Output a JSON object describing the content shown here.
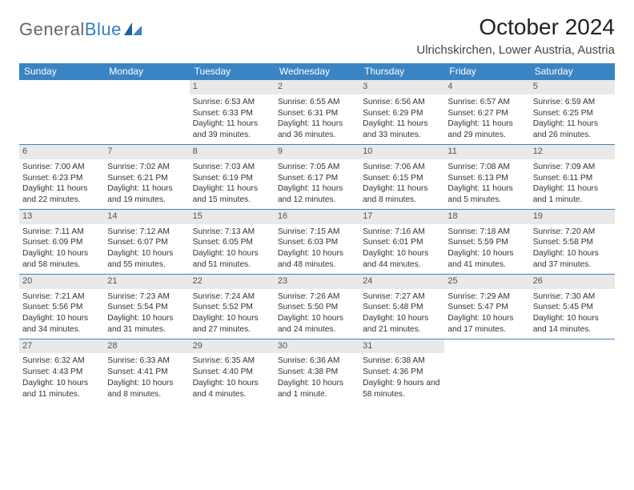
{
  "brand": {
    "name_gray": "General",
    "name_blue": "Blue"
  },
  "title": "October 2024",
  "location": "Ulrichskirchen, Lower Austria, Austria",
  "colors": {
    "header_bg": "#3b84c4",
    "daynum_bg": "#e9e9e9",
    "divider": "#3b84c4",
    "text": "#333333",
    "page_bg": "#ffffff"
  },
  "weekdays": [
    "Sunday",
    "Monday",
    "Tuesday",
    "Wednesday",
    "Thursday",
    "Friday",
    "Saturday"
  ],
  "weeks": [
    [
      {
        "n": "",
        "sunrise": "",
        "sunset": "",
        "daylight": ""
      },
      {
        "n": "",
        "sunrise": "",
        "sunset": "",
        "daylight": ""
      },
      {
        "n": "1",
        "sunrise": "Sunrise: 6:53 AM",
        "sunset": "Sunset: 6:33 PM",
        "daylight": "Daylight: 11 hours and 39 minutes."
      },
      {
        "n": "2",
        "sunrise": "Sunrise: 6:55 AM",
        "sunset": "Sunset: 6:31 PM",
        "daylight": "Daylight: 11 hours and 36 minutes."
      },
      {
        "n": "3",
        "sunrise": "Sunrise: 6:56 AM",
        "sunset": "Sunset: 6:29 PM",
        "daylight": "Daylight: 11 hours and 33 minutes."
      },
      {
        "n": "4",
        "sunrise": "Sunrise: 6:57 AM",
        "sunset": "Sunset: 6:27 PM",
        "daylight": "Daylight: 11 hours and 29 minutes."
      },
      {
        "n": "5",
        "sunrise": "Sunrise: 6:59 AM",
        "sunset": "Sunset: 6:25 PM",
        "daylight": "Daylight: 11 hours and 26 minutes."
      }
    ],
    [
      {
        "n": "6",
        "sunrise": "Sunrise: 7:00 AM",
        "sunset": "Sunset: 6:23 PM",
        "daylight": "Daylight: 11 hours and 22 minutes."
      },
      {
        "n": "7",
        "sunrise": "Sunrise: 7:02 AM",
        "sunset": "Sunset: 6:21 PM",
        "daylight": "Daylight: 11 hours and 19 minutes."
      },
      {
        "n": "8",
        "sunrise": "Sunrise: 7:03 AM",
        "sunset": "Sunset: 6:19 PM",
        "daylight": "Daylight: 11 hours and 15 minutes."
      },
      {
        "n": "9",
        "sunrise": "Sunrise: 7:05 AM",
        "sunset": "Sunset: 6:17 PM",
        "daylight": "Daylight: 11 hours and 12 minutes."
      },
      {
        "n": "10",
        "sunrise": "Sunrise: 7:06 AM",
        "sunset": "Sunset: 6:15 PM",
        "daylight": "Daylight: 11 hours and 8 minutes."
      },
      {
        "n": "11",
        "sunrise": "Sunrise: 7:08 AM",
        "sunset": "Sunset: 6:13 PM",
        "daylight": "Daylight: 11 hours and 5 minutes."
      },
      {
        "n": "12",
        "sunrise": "Sunrise: 7:09 AM",
        "sunset": "Sunset: 6:11 PM",
        "daylight": "Daylight: 11 hours and 1 minute."
      }
    ],
    [
      {
        "n": "13",
        "sunrise": "Sunrise: 7:11 AM",
        "sunset": "Sunset: 6:09 PM",
        "daylight": "Daylight: 10 hours and 58 minutes."
      },
      {
        "n": "14",
        "sunrise": "Sunrise: 7:12 AM",
        "sunset": "Sunset: 6:07 PM",
        "daylight": "Daylight: 10 hours and 55 minutes."
      },
      {
        "n": "15",
        "sunrise": "Sunrise: 7:13 AM",
        "sunset": "Sunset: 6:05 PM",
        "daylight": "Daylight: 10 hours and 51 minutes."
      },
      {
        "n": "16",
        "sunrise": "Sunrise: 7:15 AM",
        "sunset": "Sunset: 6:03 PM",
        "daylight": "Daylight: 10 hours and 48 minutes."
      },
      {
        "n": "17",
        "sunrise": "Sunrise: 7:16 AM",
        "sunset": "Sunset: 6:01 PM",
        "daylight": "Daylight: 10 hours and 44 minutes."
      },
      {
        "n": "18",
        "sunrise": "Sunrise: 7:18 AM",
        "sunset": "Sunset: 5:59 PM",
        "daylight": "Daylight: 10 hours and 41 minutes."
      },
      {
        "n": "19",
        "sunrise": "Sunrise: 7:20 AM",
        "sunset": "Sunset: 5:58 PM",
        "daylight": "Daylight: 10 hours and 37 minutes."
      }
    ],
    [
      {
        "n": "20",
        "sunrise": "Sunrise: 7:21 AM",
        "sunset": "Sunset: 5:56 PM",
        "daylight": "Daylight: 10 hours and 34 minutes."
      },
      {
        "n": "21",
        "sunrise": "Sunrise: 7:23 AM",
        "sunset": "Sunset: 5:54 PM",
        "daylight": "Daylight: 10 hours and 31 minutes."
      },
      {
        "n": "22",
        "sunrise": "Sunrise: 7:24 AM",
        "sunset": "Sunset: 5:52 PM",
        "daylight": "Daylight: 10 hours and 27 minutes."
      },
      {
        "n": "23",
        "sunrise": "Sunrise: 7:26 AM",
        "sunset": "Sunset: 5:50 PM",
        "daylight": "Daylight: 10 hours and 24 minutes."
      },
      {
        "n": "24",
        "sunrise": "Sunrise: 7:27 AM",
        "sunset": "Sunset: 5:48 PM",
        "daylight": "Daylight: 10 hours and 21 minutes."
      },
      {
        "n": "25",
        "sunrise": "Sunrise: 7:29 AM",
        "sunset": "Sunset: 5:47 PM",
        "daylight": "Daylight: 10 hours and 17 minutes."
      },
      {
        "n": "26",
        "sunrise": "Sunrise: 7:30 AM",
        "sunset": "Sunset: 5:45 PM",
        "daylight": "Daylight: 10 hours and 14 minutes."
      }
    ],
    [
      {
        "n": "27",
        "sunrise": "Sunrise: 6:32 AM",
        "sunset": "Sunset: 4:43 PM",
        "daylight": "Daylight: 10 hours and 11 minutes."
      },
      {
        "n": "28",
        "sunrise": "Sunrise: 6:33 AM",
        "sunset": "Sunset: 4:41 PM",
        "daylight": "Daylight: 10 hours and 8 minutes."
      },
      {
        "n": "29",
        "sunrise": "Sunrise: 6:35 AM",
        "sunset": "Sunset: 4:40 PM",
        "daylight": "Daylight: 10 hours and 4 minutes."
      },
      {
        "n": "30",
        "sunrise": "Sunrise: 6:36 AM",
        "sunset": "Sunset: 4:38 PM",
        "daylight": "Daylight: 10 hours and 1 minute."
      },
      {
        "n": "31",
        "sunrise": "Sunrise: 6:38 AM",
        "sunset": "Sunset: 4:36 PM",
        "daylight": "Daylight: 9 hours and 58 minutes."
      },
      {
        "n": "",
        "sunrise": "",
        "sunset": "",
        "daylight": ""
      },
      {
        "n": "",
        "sunrise": "",
        "sunset": "",
        "daylight": ""
      }
    ]
  ]
}
